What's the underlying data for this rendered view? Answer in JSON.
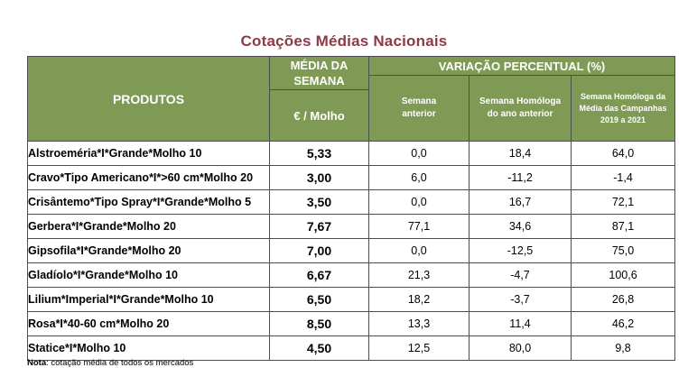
{
  "title": "Cotações Médias Nacionais",
  "table": {
    "headers": {
      "products": "PRODUTOS",
      "media_line1": "MÉDIA DA",
      "media_line2": "SEMANA",
      "unit": "€ / Molho",
      "variation": "VARIAÇÃO PERCENTUAL (%)",
      "prev_week_line1": "Semana",
      "prev_week_line2": "anterior",
      "homolog_line1": "Semana Homóloga",
      "homolog_line2": "do ano anterior",
      "campaign_line1": "Semana Homóloga da",
      "campaign_line2": "Média das Campanhas",
      "campaign_line3": "2019 a 2021"
    },
    "rows": [
      {
        "product": "Alstroeméria*I*Grande*Molho 10",
        "price": "5,33",
        "prev_week": "0,0",
        "homolog": "18,4",
        "campaign": "64,0"
      },
      {
        "product": "Cravo*Tipo Americano*I*>60 cm*Molho 20",
        "price": "3,00",
        "prev_week": "6,0",
        "homolog": "-11,2",
        "campaign": "-1,4"
      },
      {
        "product": "Crisântemo*Tipo Spray*I*Grande*Molho 5",
        "price": "3,50",
        "prev_week": "0,0",
        "homolog": "16,7",
        "campaign": "72,1"
      },
      {
        "product": "Gerbera*I*Grande*Molho 20",
        "price": "7,67",
        "prev_week": "77,1",
        "homolog": "34,6",
        "campaign": "87,1"
      },
      {
        "product": "Gipsofila*I*Grande*Molho 20",
        "price": "7,00",
        "prev_week": "0,0",
        "homolog": "-12,5",
        "campaign": "75,0"
      },
      {
        "product": "Gladíolo*I*Grande*Molho 10",
        "price": "6,67",
        "prev_week": "21,3",
        "homolog": "-4,7",
        "campaign": "100,6"
      },
      {
        "product": "Lilium*Imperial*I*Grande*Molho 10",
        "price": "6,50",
        "prev_week": "18,2",
        "homolog": "-3,7",
        "campaign": "26,8"
      },
      {
        "product": "Rosa*I*40-60 cm*Molho 20",
        "price": "8,50",
        "prev_week": "13,3",
        "homolog": "11,4",
        "campaign": "46,2"
      },
      {
        "product": "Statice*I*Molho 10",
        "price": "4,50",
        "prev_week": "12,5",
        "homolog": "80,0",
        "campaign": "9,8"
      }
    ]
  },
  "note": {
    "label": "Nota",
    "text": ": cotação média de todos os mercados"
  },
  "colors": {
    "header_bg": "#7f9a55",
    "title": "#8b3b47"
  }
}
